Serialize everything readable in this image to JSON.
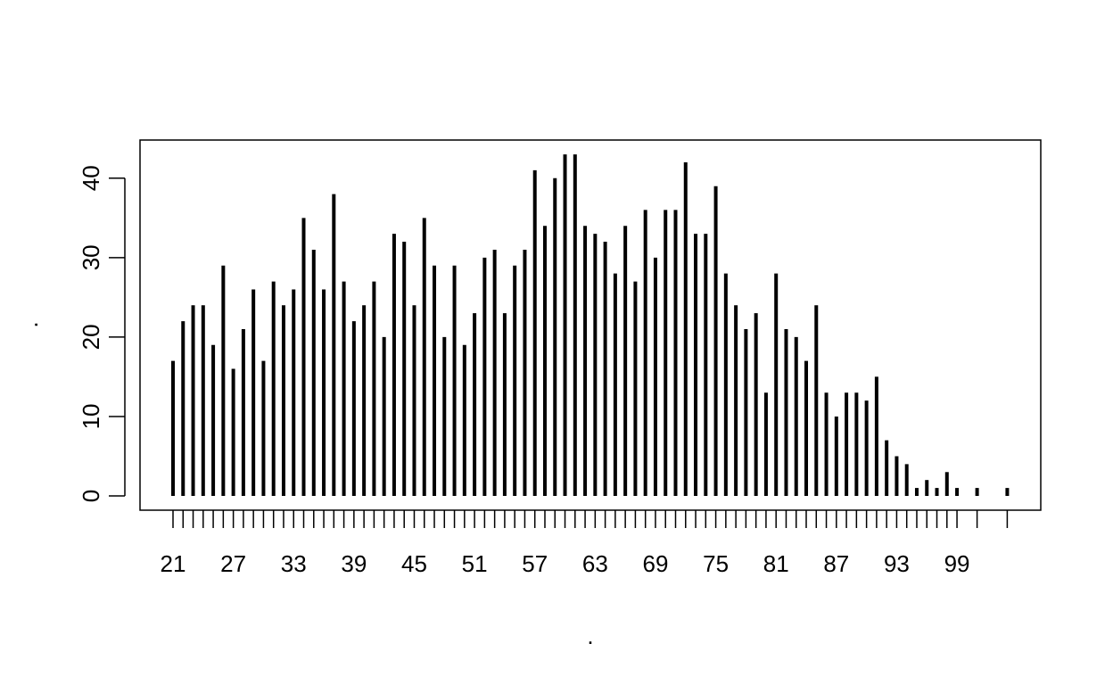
{
  "chart_data": {
    "type": "bar",
    "style": "histogram-lines",
    "title": "",
    "xlabel": ".",
    "ylabel": ".",
    "ylim": [
      0,
      43
    ],
    "yticks": [
      0,
      10,
      20,
      30,
      40
    ],
    "x_tick_labels": [
      "21",
      "27",
      "33",
      "39",
      "45",
      "51",
      "57",
      "63",
      "69",
      "75",
      "81",
      "87",
      "93",
      "99"
    ],
    "x": [
      21,
      22,
      23,
      24,
      25,
      26,
      27,
      28,
      29,
      30,
      31,
      32,
      33,
      34,
      35,
      36,
      37,
      38,
      39,
      40,
      41,
      42,
      43,
      44,
      45,
      46,
      47,
      48,
      49,
      50,
      51,
      52,
      53,
      54,
      55,
      56,
      57,
      58,
      59,
      60,
      61,
      62,
      63,
      64,
      65,
      66,
      67,
      68,
      69,
      70,
      71,
      72,
      73,
      74,
      75,
      76,
      77,
      78,
      79,
      80,
      81,
      82,
      83,
      84,
      85,
      86,
      87,
      88,
      89,
      90,
      91,
      92,
      93,
      94,
      95,
      96,
      97,
      98,
      99,
      101,
      104
    ],
    "values": [
      17,
      22,
      24,
      24,
      19,
      29,
      16,
      21,
      26,
      17,
      27,
      24,
      26,
      35,
      31,
      26,
      38,
      27,
      22,
      24,
      27,
      20,
      33,
      32,
      24,
      35,
      29,
      20,
      29,
      19,
      23,
      30,
      31,
      23,
      29,
      31,
      41,
      34,
      40,
      43,
      43,
      34,
      33,
      32,
      28,
      34,
      27,
      36,
      30,
      36,
      36,
      42,
      33,
      33,
      39,
      28,
      24,
      21,
      23,
      13,
      28,
      21,
      20,
      17,
      24,
      13,
      10,
      13,
      13,
      12,
      15,
      7,
      5,
      4,
      1,
      2,
      1,
      3,
      1,
      1,
      1
    ],
    "grid": false,
    "colors": {
      "bars": "#000000",
      "axes": "#000000",
      "background": "#ffffff"
    }
  }
}
